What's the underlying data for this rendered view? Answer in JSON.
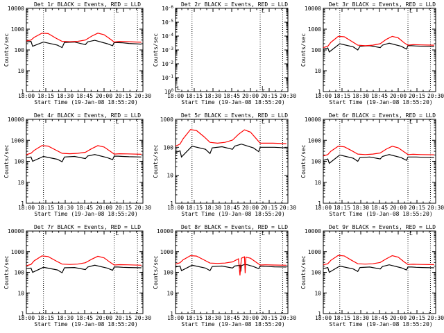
{
  "figure": {
    "ylabel": "Counts/sec",
    "xlabel": "Start Time (19-Jan-08 18:55:20)",
    "legend_marker": "L",
    "x_ticks": [
      "18:00",
      "18:15",
      "18:30",
      "18:45",
      "20:00",
      "20:15",
      "20:30"
    ],
    "colors": {
      "events": "#000000",
      "lld": "#ff0000",
      "background": "#ffffff"
    }
  },
  "chart_data": [
    {
      "title": "Det 1r BLACK = Events, RED = LLD",
      "type": "line",
      "yscale": "log",
      "ylim": [
        1,
        10000
      ],
      "y_ticks": [
        "1",
        "10",
        "100",
        "1000",
        "10000"
      ],
      "xlim": [
        0,
        150
      ],
      "vlines": [
        22,
        113,
        143
      ],
      "series": [
        {
          "name": "Events",
          "color": "#000000",
          "x": [
            0,
            6,
            8,
            22,
            40,
            46,
            49,
            62,
            76,
            79,
            88,
            104,
            111,
            113,
            118,
            124,
            132,
            148
          ],
          "y": [
            240,
            260,
            150,
            240,
            170,
            130,
            230,
            240,
            180,
            245,
            290,
            200,
            160,
            230,
            225,
            220,
            205,
            190
          ]
        },
        {
          "name": "LLD",
          "color": "#ff0000",
          "x": [
            0,
            6,
            10,
            20,
            28,
            38,
            46,
            56,
            66,
            76,
            84,
            92,
            100,
            108,
            113,
            120,
            130,
            148
          ],
          "y": [
            270,
            300,
            400,
            640,
            610,
            370,
            260,
            250,
            260,
            300,
            460,
            640,
            540,
            330,
            240,
            260,
            250,
            235
          ]
        }
      ]
    },
    {
      "title": "Det 2r BLACK = Events, RED = LLD",
      "type": "line",
      "yscale": "log",
      "ylim": [
        1e-06,
        1
      ],
      "y_ticks": [
        "10^0",
        "10^-1",
        "10^-2",
        "10^-3",
        "10^-4",
        "10^-5",
        "10^-6"
      ],
      "xlim": [
        0,
        150
      ],
      "vlines": [
        22,
        113,
        143
      ],
      "series": []
    },
    {
      "title": "Det 3r BLACK = Events, RED = LLD",
      "type": "line",
      "yscale": "log",
      "ylim": [
        1,
        10000
      ],
      "y_ticks": [
        "1",
        "10",
        "100",
        "1000",
        "10000"
      ],
      "xlim": [
        0,
        150
      ],
      "vlines": [
        22,
        113,
        143
      ],
      "series": [
        {
          "name": "Events",
          "color": "#000000",
          "x": [
            0,
            6,
            8,
            22,
            40,
            46,
            49,
            62,
            76,
            79,
            88,
            104,
            111,
            113,
            118,
            124,
            132,
            148
          ],
          "y": [
            110,
            125,
            80,
            200,
            140,
            100,
            150,
            160,
            130,
            170,
            210,
            150,
            110,
            160,
            160,
            155,
            150,
            145
          ]
        },
        {
          "name": "LLD",
          "color": "#ff0000",
          "x": [
            0,
            6,
            10,
            20,
            28,
            38,
            46,
            56,
            66,
            76,
            84,
            92,
            100,
            108,
            113,
            120,
            130,
            148
          ],
          "y": [
            130,
            150,
            230,
            450,
            430,
            260,
            170,
            160,
            170,
            200,
            320,
            450,
            380,
            220,
            170,
            180,
            175,
            170
          ]
        }
      ]
    },
    {
      "title": "Det 4r BLACK = Events, RED = LLD",
      "type": "line",
      "yscale": "log",
      "ylim": [
        1,
        10000
      ],
      "y_ticks": [
        "1",
        "10",
        "100",
        "1000",
        "10000"
      ],
      "xlim": [
        0,
        150
      ],
      "vlines": [
        22,
        113,
        143
      ],
      "series": [
        {
          "name": "Events",
          "color": "#000000",
          "x": [
            0,
            6,
            8,
            22,
            40,
            46,
            49,
            62,
            76,
            79,
            88,
            104,
            111,
            113,
            118,
            124,
            132,
            148
          ],
          "y": [
            150,
            160,
            100,
            170,
            125,
            95,
            160,
            170,
            135,
            180,
            210,
            150,
            120,
            175,
            175,
            170,
            165,
            160
          ]
        },
        {
          "name": "LLD",
          "color": "#ff0000",
          "x": [
            0,
            6,
            10,
            20,
            28,
            38,
            46,
            56,
            66,
            76,
            84,
            92,
            100,
            108,
            113,
            120,
            130,
            148
          ],
          "y": [
            210,
            240,
            330,
            560,
            530,
            340,
            240,
            230,
            240,
            270,
            400,
            560,
            480,
            300,
            220,
            230,
            225,
            215
          ]
        }
      ]
    },
    {
      "title": "Det 5r BLACK = Events, RED = LLD",
      "type": "line",
      "yscale": "log",
      "ylim": [
        1,
        1000
      ],
      "y_ticks": [
        "1",
        "10",
        "100",
        "1000"
      ],
      "xlim": [
        0,
        150
      ],
      "vlines": [
        22,
        113,
        143
      ],
      "series": [
        {
          "name": "Events",
          "color": "#000000",
          "x": [
            0,
            6,
            8,
            22,
            40,
            46,
            49,
            62,
            76,
            79,
            88,
            104,
            111,
            113,
            118,
            124,
            132,
            148
          ],
          "y": [
            65,
            75,
            45,
            110,
            85,
            60,
            95,
            105,
            85,
            110,
            130,
            95,
            70,
            100,
            100,
            100,
            100,
            95
          ]
        },
        {
          "name": "LLD",
          "color": "#ff0000",
          "x": [
            0,
            6,
            10,
            20,
            28,
            38,
            46,
            56,
            66,
            76,
            84,
            92,
            100,
            108,
            113,
            120,
            130,
            148
          ],
          "y": [
            110,
            130,
            200,
            430,
            400,
            240,
            150,
            140,
            150,
            180,
            290,
            420,
            350,
            200,
            140,
            140,
            140,
            135
          ]
        }
      ]
    },
    {
      "title": "Det 6r BLACK = Events, RED = LLD",
      "type": "line",
      "yscale": "log",
      "ylim": [
        1,
        10000
      ],
      "y_ticks": [
        "1",
        "10",
        "100",
        "1000",
        "10000"
      ],
      "xlim": [
        0,
        150
      ],
      "vlines": [
        22,
        113,
        143
      ],
      "series": [
        {
          "name": "Events",
          "color": "#000000",
          "x": [
            0,
            6,
            8,
            22,
            40,
            46,
            49,
            62,
            76,
            79,
            88,
            104,
            111,
            113,
            118,
            124,
            132,
            148
          ],
          "y": [
            110,
            130,
            80,
            200,
            140,
            100,
            150,
            160,
            130,
            170,
            210,
            150,
            110,
            160,
            160,
            160,
            155,
            150
          ]
        },
        {
          "name": "LLD",
          "color": "#ff0000",
          "x": [
            0,
            6,
            10,
            20,
            28,
            38,
            46,
            56,
            66,
            76,
            84,
            92,
            100,
            108,
            113,
            120,
            130,
            148
          ],
          "y": [
            180,
            210,
            300,
            520,
            490,
            320,
            220,
            210,
            220,
            250,
            380,
            520,
            440,
            280,
            210,
            215,
            210,
            205
          ]
        }
      ]
    },
    {
      "title": "Det 7r BLACK = Events, RED = LLD",
      "type": "line",
      "yscale": "log",
      "ylim": [
        1,
        10000
      ],
      "y_ticks": [
        "1",
        "10",
        "100",
        "1000",
        "10000"
      ],
      "xlim": [
        0,
        150
      ],
      "vlines": [
        22,
        113,
        143
      ],
      "series": [
        {
          "name": "Events",
          "color": "#000000",
          "x": [
            0,
            6,
            8,
            22,
            40,
            46,
            49,
            62,
            76,
            79,
            88,
            104,
            111,
            113,
            118,
            124,
            132,
            148
          ],
          "y": [
            150,
            160,
            100,
            175,
            130,
            95,
            165,
            170,
            135,
            180,
            220,
            160,
            125,
            180,
            180,
            175,
            170,
            165
          ]
        },
        {
          "name": "LLD",
          "color": "#ff0000",
          "x": [
            0,
            6,
            10,
            20,
            28,
            38,
            46,
            56,
            66,
            76,
            84,
            92,
            100,
            108,
            113,
            120,
            130,
            148
          ],
          "y": [
            210,
            240,
            360,
            620,
            580,
            360,
            250,
            240,
            250,
            290,
            430,
            600,
            500,
            300,
            225,
            235,
            230,
            220
          ]
        }
      ]
    },
    {
      "title": "Det 8r BLACK = Events, RED = LLD",
      "type": "line",
      "yscale": "log",
      "ylim": [
        1,
        10000
      ],
      "y_ticks": [
        "1",
        "10",
        "100",
        "1000",
        "10000"
      ],
      "xlim": [
        0,
        150
      ],
      "vlines": [
        22,
        113,
        143
      ],
      "series": [
        {
          "name": "Events",
          "color": "#000000",
          "x": [
            0,
            6,
            8,
            22,
            40,
            46,
            49,
            62,
            76,
            79,
            86,
            87,
            88,
            92,
            96,
            104,
            111,
            113,
            118,
            124,
            132,
            148
          ],
          "y": [
            180,
            200,
            120,
            220,
            160,
            120,
            190,
            200,
            160,
            200,
            220,
            110,
            210,
            240,
            230,
            190,
            150,
            200,
            195,
            190,
            185,
            180
          ]
        },
        {
          "name": "LLD",
          "color": "#ff0000",
          "x": [
            0,
            6,
            10,
            20,
            28,
            38,
            46,
            56,
            66,
            76,
            84,
            86,
            87,
            88,
            92,
            93,
            94,
            100,
            108,
            113,
            120,
            130,
            148
          ],
          "y": [
            250,
            290,
            400,
            640,
            610,
            400,
            280,
            270,
            280,
            320,
            450,
            70,
            200,
            480,
            560,
            90,
            540,
            480,
            300,
            225,
            230,
            225,
            220
          ]
        }
      ]
    },
    {
      "title": "Det 9r BLACK = Events, RED = LLD",
      "type": "line",
      "yscale": "log",
      "ylim": [
        1,
        10000
      ],
      "y_ticks": [
        "1",
        "10",
        "100",
        "1000",
        "10000"
      ],
      "xlim": [
        0,
        150
      ],
      "vlines": [
        22,
        113,
        143
      ],
      "series": [
        {
          "name": "Events",
          "color": "#000000",
          "x": [
            0,
            6,
            8,
            22,
            40,
            46,
            49,
            62,
            76,
            79,
            88,
            104,
            111,
            113,
            118,
            124,
            132,
            148
          ],
          "y": [
            150,
            170,
            100,
            200,
            145,
            110,
            170,
            180,
            145,
            190,
            230,
            165,
            130,
            180,
            180,
            175,
            170,
            165
          ]
        },
        {
          "name": "LLD",
          "color": "#ff0000",
          "x": [
            0,
            6,
            10,
            20,
            28,
            38,
            46,
            56,
            66,
            76,
            84,
            92,
            100,
            108,
            113,
            120,
            130,
            148
          ],
          "y": [
            230,
            260,
            380,
            660,
            620,
            380,
            260,
            250,
            260,
            300,
            450,
            640,
            540,
            320,
            240,
            245,
            240,
            235
          ]
        }
      ]
    }
  ]
}
